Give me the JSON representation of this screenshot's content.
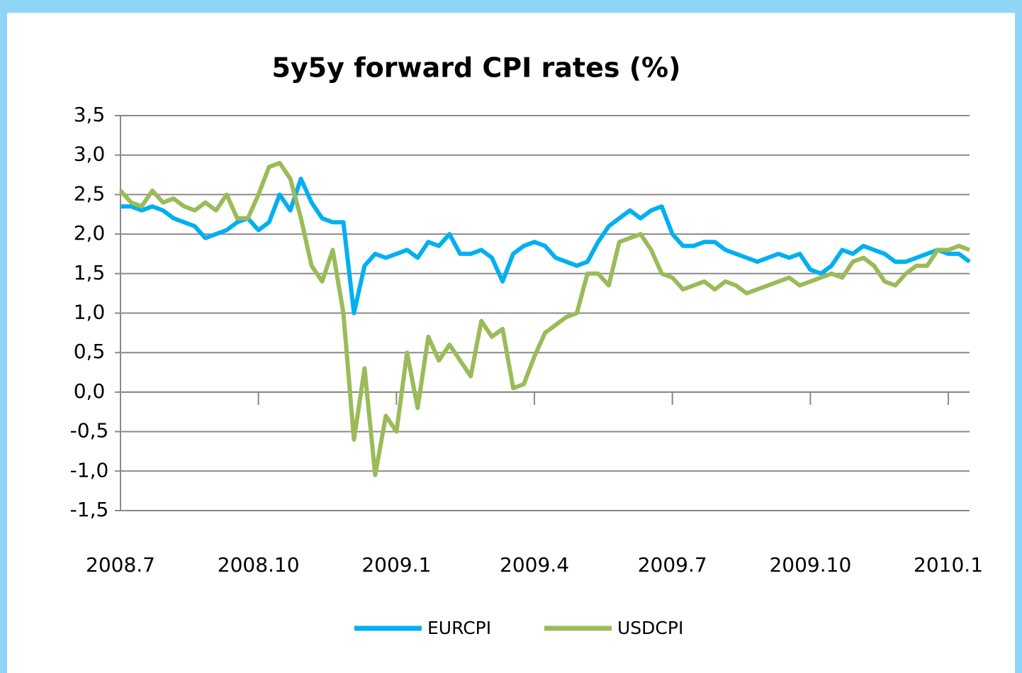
{
  "chart_data": {
    "type": "line",
    "title": "5y5y forward CPI rates (%)",
    "categories": [
      "2008.7",
      null,
      null,
      null,
      null,
      null,
      null,
      null,
      null,
      null,
      null,
      null,
      null,
      "2008.10",
      null,
      null,
      null,
      null,
      null,
      null,
      null,
      null,
      null,
      null,
      null,
      null,
      "2009.1",
      null,
      null,
      null,
      null,
      null,
      null,
      null,
      null,
      null,
      null,
      null,
      null,
      "2009.4",
      null,
      null,
      null,
      null,
      null,
      null,
      null,
      null,
      null,
      null,
      null,
      null,
      "2009.7",
      null,
      null,
      null,
      null,
      null,
      null,
      null,
      null,
      null,
      null,
      null,
      null,
      "2009.10",
      null,
      null,
      null,
      null,
      null,
      null,
      null,
      null,
      null,
      null,
      null,
      null,
      "2010.1",
      null,
      null
    ],
    "series": [
      {
        "name": "EURCPI",
        "color": "#00b0f0",
        "values": [
          2.35,
          2.35,
          2.3,
          2.35,
          2.3,
          2.2,
          2.15,
          2.1,
          1.95,
          2.0,
          2.05,
          2.15,
          2.2,
          2.05,
          2.15,
          2.5,
          2.3,
          2.7,
          2.4,
          2.2,
          2.15,
          2.15,
          1.0,
          1.6,
          1.75,
          1.7,
          1.75,
          1.8,
          1.7,
          1.9,
          1.85,
          2.0,
          1.75,
          1.75,
          1.8,
          1.7,
          1.4,
          1.75,
          1.85,
          1.9,
          1.85,
          1.7,
          1.65,
          1.6,
          1.65,
          1.9,
          2.1,
          2.2,
          2.3,
          2.2,
          2.3,
          2.35,
          2.0,
          1.85,
          1.85,
          1.9,
          1.9,
          1.8,
          1.75,
          1.7,
          1.65,
          1.7,
          1.75,
          1.7,
          1.75,
          1.55,
          1.5,
          1.6,
          1.8,
          1.75,
          1.85,
          1.8,
          1.75,
          1.65,
          1.65,
          1.7,
          1.75,
          1.8,
          1.75,
          1.75,
          1.65
        ]
      },
      {
        "name": "USDCPI",
        "color": "#9bbb59",
        "values": [
          2.55,
          2.4,
          2.35,
          2.55,
          2.4,
          2.45,
          2.35,
          2.3,
          2.4,
          2.3,
          2.5,
          2.2,
          2.2,
          2.5,
          2.85,
          2.9,
          2.7,
          2.2,
          1.6,
          1.4,
          1.8,
          1.0,
          -0.6,
          0.3,
          -1.05,
          -0.3,
          -0.5,
          0.5,
          -0.2,
          0.7,
          0.4,
          0.6,
          0.4,
          0.2,
          0.9,
          0.7,
          0.8,
          0.05,
          0.1,
          0.45,
          0.75,
          0.85,
          0.95,
          1.0,
          1.5,
          1.5,
          1.35,
          1.9,
          1.95,
          2.0,
          1.8,
          1.5,
          1.45,
          1.3,
          1.35,
          1.4,
          1.3,
          1.4,
          1.35,
          1.25,
          1.3,
          1.35,
          1.4,
          1.45,
          1.35,
          1.4,
          1.45,
          1.5,
          1.45,
          1.65,
          1.7,
          1.6,
          1.4,
          1.35,
          1.5,
          1.6,
          1.6,
          1.8,
          1.8,
          1.85,
          1.8
        ]
      }
    ],
    "ylim": [
      -1.5,
      3.5
    ],
    "yticks": [
      {
        "value": -1.5,
        "label": "-1,5"
      },
      {
        "value": -1,
        "label": "-1,0"
      },
      {
        "value": -0.5,
        "label": "-0,5"
      },
      {
        "value": 0,
        "label": "0,0"
      },
      {
        "value": 0.5,
        "label": "0,5"
      },
      {
        "value": 1,
        "label": "1,0"
      },
      {
        "value": 1.5,
        "label": "1,5"
      },
      {
        "value": 2,
        "label": "2,0"
      },
      {
        "value": 2.5,
        "label": "2,5"
      },
      {
        "value": 3,
        "label": "3,0"
      },
      {
        "value": 3.5,
        "label": "3,5"
      }
    ],
    "grid": true,
    "legend": "bottom"
  }
}
